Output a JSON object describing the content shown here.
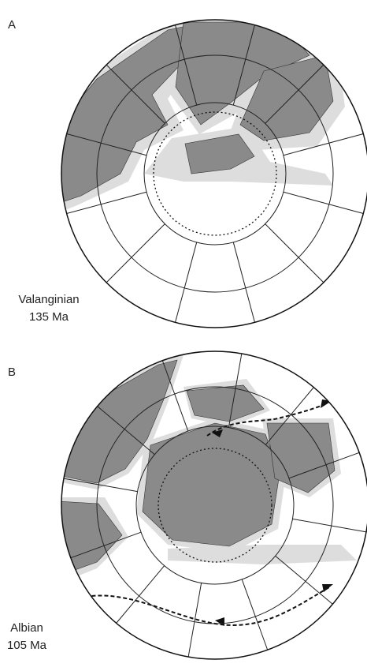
{
  "panels": [
    {
      "label": "A",
      "stage": "Valanginian",
      "age": "135 Ma"
    },
    {
      "label": "B",
      "stage": "Albian",
      "age": "105 Ma"
    }
  ]
}
